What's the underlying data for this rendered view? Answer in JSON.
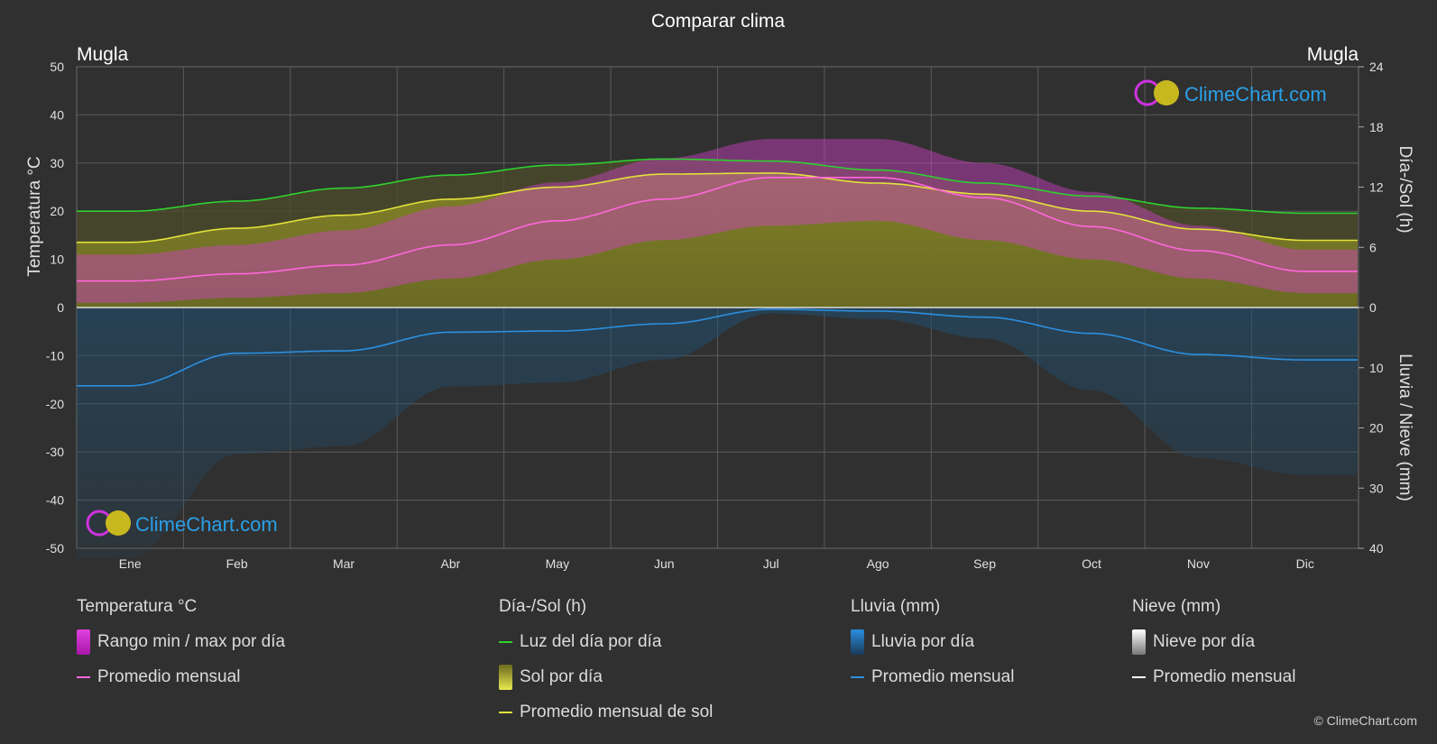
{
  "title": "Comparar clima",
  "location_left": "Mugla",
  "location_right": "Mugla",
  "axes": {
    "left_label": "Temperatura °C",
    "right_top_label": "Día-/Sol (h)",
    "right_bottom_label": "Lluvia / Nieve (mm)",
    "left_ticks": [
      "50",
      "40",
      "30",
      "20",
      "10",
      "0",
      "-10",
      "-20",
      "-30",
      "-40",
      "-50"
    ],
    "right_top_ticks": [
      "24",
      "18",
      "12",
      "6",
      "0"
    ],
    "right_bottom_ticks": [
      "10",
      "20",
      "30",
      "40"
    ]
  },
  "chart_data": {
    "type": "line",
    "categories": [
      "Ene",
      "Feb",
      "Mar",
      "Abr",
      "May",
      "Jun",
      "Jul",
      "Ago",
      "Sep",
      "Oct",
      "Nov",
      "Dic"
    ],
    "temp_ylim": [
      -50,
      50
    ],
    "sun_ylim": [
      0,
      24
    ],
    "precip_ylim": [
      0,
      40
    ],
    "series": [
      {
        "name": "Luz del día por día",
        "unit": "h",
        "color": "#2fd12f",
        "values": [
          9.6,
          10.6,
          11.9,
          13.2,
          14.2,
          14.8,
          14.6,
          13.7,
          12.4,
          11.1,
          9.9,
          9.4
        ]
      },
      {
        "name": "Promedio mensual de sol",
        "unit": "h",
        "color": "#e2e23a",
        "values": [
          6.5,
          7.9,
          9.2,
          10.8,
          12.0,
          13.3,
          13.4,
          12.4,
          11.3,
          9.6,
          7.8,
          6.7
        ]
      },
      {
        "name": "Promedio mensual",
        "unit": "°C",
        "color": "#ff66dd",
        "values": [
          5.5,
          7.0,
          8.8,
          13.0,
          18.0,
          22.5,
          27.0,
          27.0,
          22.8,
          16.8,
          11.8,
          7.5
        ]
      },
      {
        "name": "Promedio mensual",
        "unit": "mm",
        "color": "#2b8fe0",
        "values": [
          13.0,
          7.6,
          7.2,
          4.1,
          3.9,
          2.7,
          0.3,
          0.6,
          1.6,
          4.3,
          7.8,
          8.7
        ]
      }
    ],
    "temp_max_by_month": [
      11,
      13,
      16,
      21,
      26,
      31,
      35,
      35,
      30,
      24,
      17,
      12
    ],
    "temp_min_by_month": [
      1,
      2,
      3,
      6,
      10,
      14,
      17,
      18,
      14,
      10,
      6,
      3
    ]
  },
  "watermark": "ClimeChart.com",
  "legend": {
    "groups": [
      {
        "title": "Temperatura °C",
        "items": [
          {
            "label": "Rango min / max por día",
            "kind": "bar",
            "colors": [
              "#e040e0",
              "#c020c0"
            ]
          },
          {
            "label": "Promedio mensual",
            "kind": "line",
            "color": "#ff66dd"
          }
        ]
      },
      {
        "title": "Día-/Sol (h)",
        "items": [
          {
            "label": "Luz del día por día",
            "kind": "line",
            "color": "#2fd12f"
          },
          {
            "label": "Sol por día",
            "kind": "bar",
            "colors": [
              "#e8e850",
              "#6a6a20"
            ]
          },
          {
            "label": "Promedio mensual de sol",
            "kind": "line",
            "color": "#e2e23a"
          }
        ]
      },
      {
        "title": "Lluvia (mm)",
        "items": [
          {
            "label": "Lluvia por día",
            "kind": "bar",
            "colors": [
              "#2a8ee0",
              "#1a4a70"
            ]
          },
          {
            "label": "Promedio mensual",
            "kind": "line",
            "color": "#2b8fe0"
          }
        ]
      },
      {
        "title": "Nieve (mm)",
        "items": [
          {
            "label": "Nieve por día",
            "kind": "bar",
            "colors": [
              "#ffffff",
              "#888888"
            ]
          },
          {
            "label": "Promedio mensual",
            "kind": "line",
            "color": "#ffffff"
          }
        ]
      }
    ]
  },
  "copyright": "© ClimeChart.com"
}
